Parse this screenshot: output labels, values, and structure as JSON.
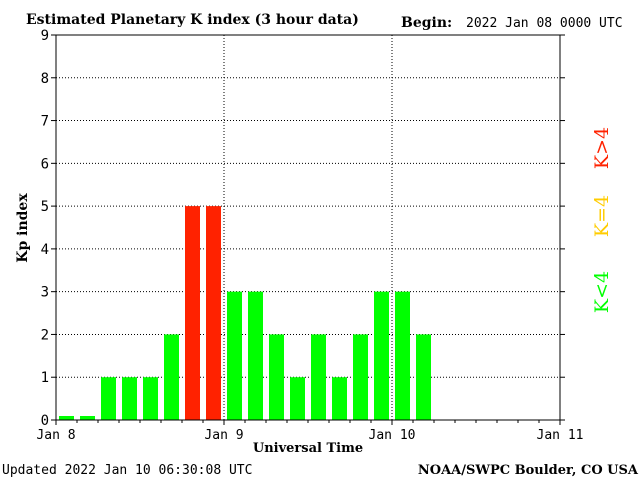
{
  "chart_data": {
    "type": "bar",
    "title": "Estimated Planetary K index (3 hour data)",
    "begin_label": "Begin:",
    "begin_value": "2022 Jan 08 0000 UTC",
    "xlabel": "Universal Time",
    "ylabel": "Kp index",
    "ylim": [
      0,
      9
    ],
    "y_ticks": [
      "0",
      "1",
      "2",
      "3",
      "4",
      "5",
      "6",
      "7",
      "8",
      "9"
    ],
    "x_ticks": [
      "Jan 8",
      "Jan 9",
      "Jan 10",
      "Jan 11"
    ],
    "x_range_hours": [
      0,
      72
    ],
    "interval_hours": 3,
    "values": [
      0,
      0,
      1,
      1,
      1,
      2,
      5,
      5,
      3,
      3,
      2,
      1,
      2,
      1,
      2,
      3,
      3,
      2
    ],
    "grid": true,
    "legend": [
      "K<4",
      "K=4",
      "K>4"
    ],
    "colors": {
      "low": "#00ff00",
      "mid": "#ffcc00",
      "high": "#ff2200",
      "grid": "#000000"
    },
    "updated": "Updated 2022 Jan 10 06:30:08 UTC",
    "source": "NOAA/SWPC Boulder, CO USA"
  }
}
